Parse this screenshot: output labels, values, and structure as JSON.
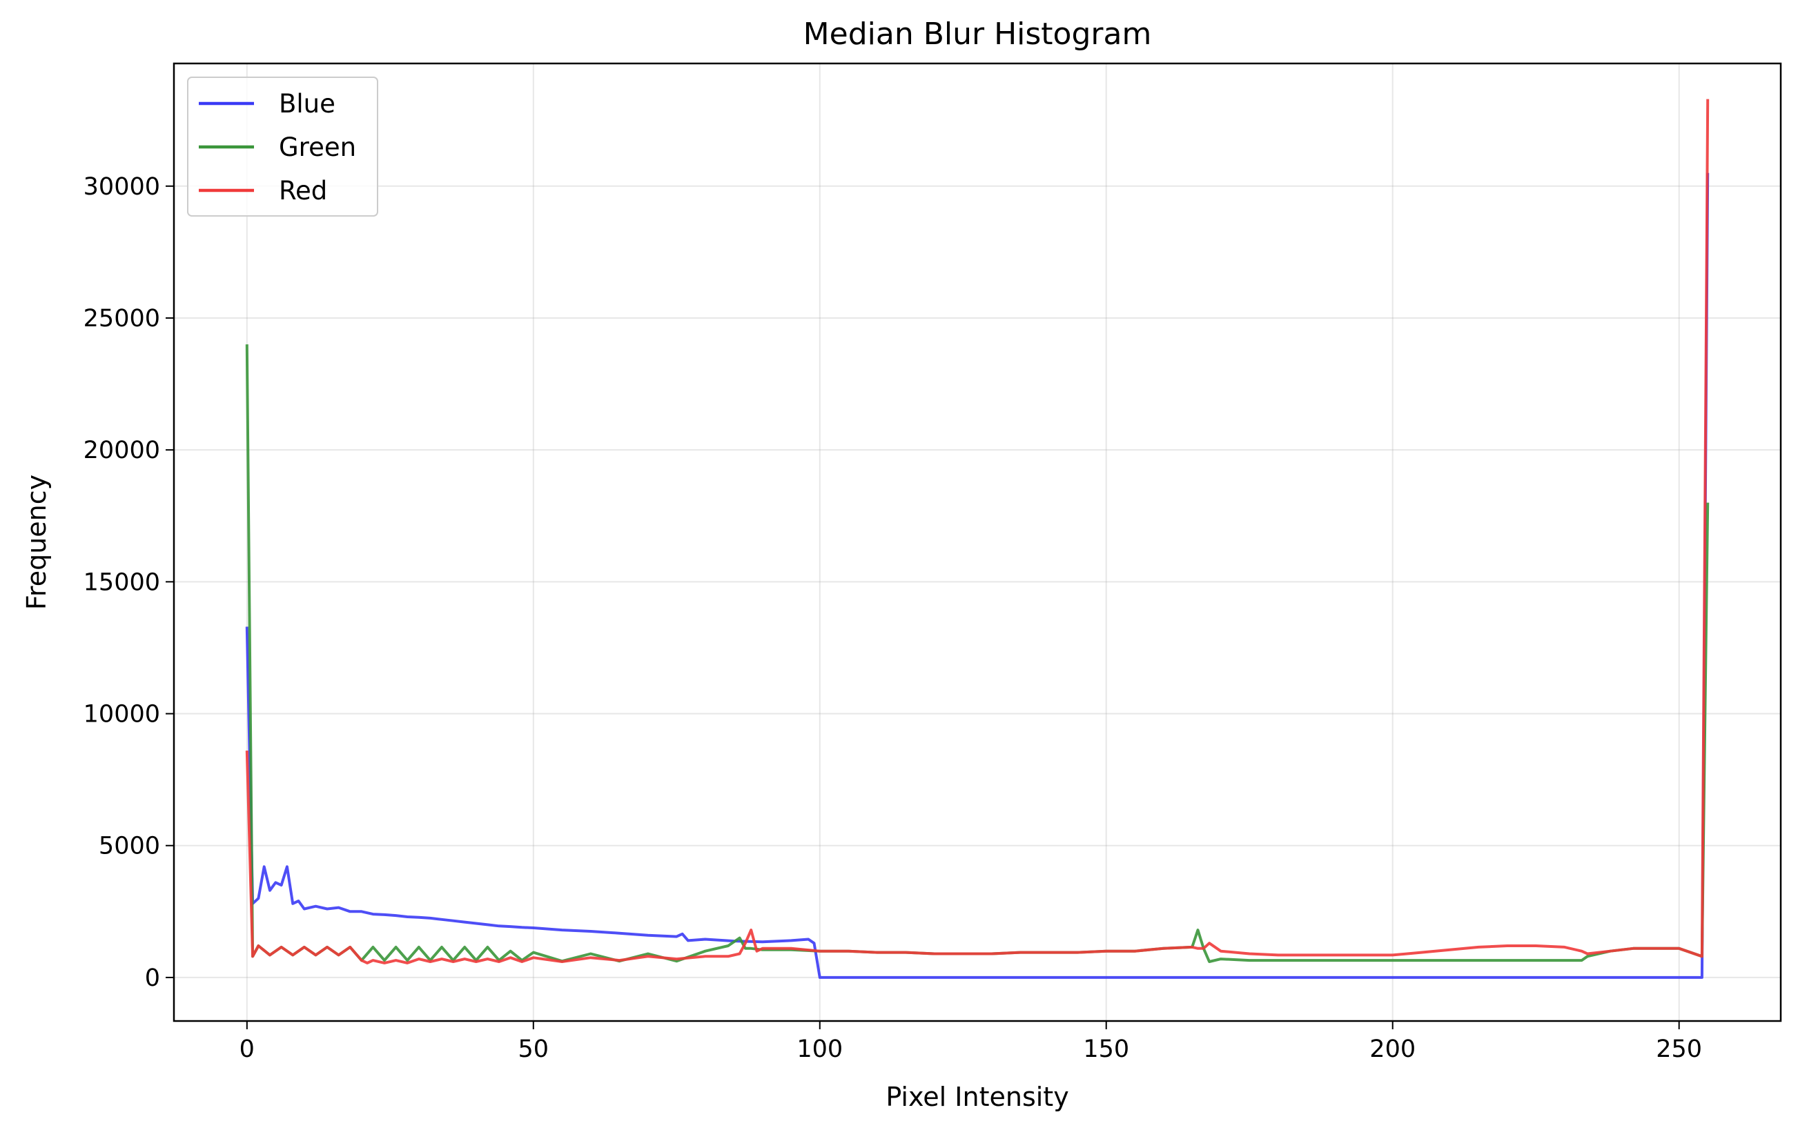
{
  "chart_data": {
    "type": "line",
    "title": "Median Blur Histogram",
    "xlabel": "Pixel Intensity",
    "ylabel": "Frequency",
    "xlim": [
      -12.75,
      267.75
    ],
    "ylim": [
      -1650,
      34650
    ],
    "xticks": [
      "0",
      "50",
      "100",
      "150",
      "200",
      "250"
    ],
    "yticks": [
      "0",
      "5000",
      "10000",
      "15000",
      "20000",
      "25000",
      "30000"
    ],
    "grid": true,
    "legend_position": "top-left",
    "series": [
      {
        "name": "Blue",
        "color": "#3b3bf5",
        "x": [
          0,
          1,
          2,
          3,
          4,
          5,
          6,
          7,
          8,
          9,
          10,
          12,
          14,
          16,
          18,
          20,
          22,
          24,
          26,
          28,
          30,
          32,
          34,
          36,
          38,
          40,
          42,
          44,
          46,
          48,
          50,
          55,
          60,
          65,
          70,
          75,
          76,
          77,
          80,
          85,
          90,
          95,
          98,
          99,
          100,
          254,
          255
        ],
        "y": [
          13300,
          2800,
          3000,
          4200,
          3300,
          3600,
          3500,
          4200,
          2800,
          2900,
          2600,
          2700,
          2600,
          2650,
          2500,
          2500,
          2400,
          2380,
          2350,
          2300,
          2280,
          2250,
          2200,
          2150,
          2100,
          2050,
          2000,
          1950,
          1930,
          1900,
          1880,
          1800,
          1750,
          1680,
          1600,
          1550,
          1650,
          1400,
          1450,
          1380,
          1350,
          1400,
          1450,
          1300,
          0,
          0,
          30500
        ]
      },
      {
        "name": "Green",
        "color": "#3a963a",
        "x": [
          0,
          1,
          2,
          4,
          6,
          8,
          10,
          12,
          14,
          16,
          18,
          20,
          22,
          24,
          26,
          28,
          30,
          32,
          34,
          36,
          38,
          40,
          42,
          44,
          46,
          48,
          50,
          55,
          60,
          65,
          70,
          75,
          80,
          84,
          86,
          87,
          88,
          90,
          95,
          100,
          105,
          110,
          115,
          120,
          125,
          130,
          135,
          140,
          145,
          150,
          155,
          160,
          165,
          166,
          167,
          168,
          170,
          175,
          180,
          185,
          190,
          195,
          200,
          205,
          210,
          215,
          220,
          225,
          230,
          233,
          234,
          238,
          242,
          246,
          250,
          254,
          255
        ],
        "y": [
          24000,
          800,
          1200,
          850,
          1150,
          850,
          1150,
          850,
          1150,
          850,
          1150,
          650,
          1150,
          650,
          1150,
          650,
          1150,
          650,
          1150,
          650,
          1150,
          650,
          1150,
          650,
          1000,
          650,
          950,
          620,
          900,
          620,
          900,
          620,
          1000,
          1200,
          1500,
          1100,
          1100,
          1050,
          1050,
          1000,
          1000,
          950,
          950,
          900,
          900,
          900,
          950,
          950,
          950,
          1000,
          1000,
          1100,
          1150,
          1800,
          1100,
          600,
          700,
          650,
          650,
          650,
          650,
          650,
          650,
          650,
          650,
          650,
          650,
          650,
          650,
          650,
          800,
          1000,
          1100,
          1100,
          1100,
          800,
          18000
        ]
      },
      {
        "name": "Red",
        "color": "#f03a3a",
        "x": [
          0,
          1,
          2,
          4,
          6,
          8,
          10,
          12,
          14,
          16,
          18,
          20,
          21,
          22,
          24,
          26,
          28,
          30,
          32,
          34,
          36,
          38,
          40,
          42,
          44,
          46,
          48,
          50,
          55,
          60,
          65,
          70,
          75,
          80,
          84,
          86,
          87,
          88,
          89,
          90,
          95,
          100,
          105,
          110,
          115,
          120,
          125,
          130,
          135,
          140,
          145,
          150,
          155,
          160,
          165,
          166,
          167,
          168,
          170,
          175,
          180,
          185,
          190,
          195,
          200,
          205,
          210,
          215,
          220,
          225,
          230,
          233,
          234,
          238,
          242,
          246,
          250,
          254,
          255
        ],
        "y": [
          8600,
          800,
          1200,
          850,
          1150,
          850,
          1150,
          850,
          1150,
          850,
          1150,
          650,
          550,
          650,
          550,
          650,
          550,
          700,
          600,
          700,
          600,
          700,
          600,
          700,
          600,
          750,
          600,
          750,
          600,
          750,
          650,
          800,
          700,
          800,
          800,
          900,
          1300,
          1800,
          1000,
          1100,
          1100,
          1000,
          1000,
          950,
          950,
          900,
          900,
          900,
          950,
          950,
          950,
          1000,
          1000,
          1100,
          1150,
          1100,
          1100,
          1300,
          1000,
          900,
          850,
          850,
          850,
          850,
          850,
          950,
          1050,
          1150,
          1200,
          1200,
          1150,
          1000,
          900,
          1000,
          1100,
          1100,
          1100,
          800,
          33300
        ]
      }
    ]
  }
}
